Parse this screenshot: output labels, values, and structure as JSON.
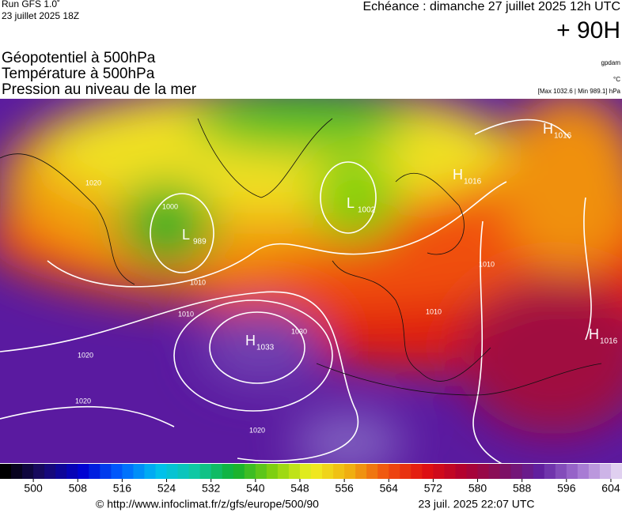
{
  "header": {
    "run": "Run GFS 1.0˚",
    "run_date": "23 juillet 2025 18Z",
    "forecast": "Echéance : dimanche 27 juillet 2025 12h UTC",
    "lead": "+ 90H"
  },
  "fields": {
    "geopotential": "Géopotentiel à 500hPa",
    "temperature": "Température à 500hPa",
    "pressure": "Pression au niveau de la mer"
  },
  "units": {
    "geopotential": "gpdam",
    "temperature": "°C",
    "pressure": "[Max 1032.6 | Min 989.1] hPa"
  },
  "map": {
    "centers": [
      {
        "letter": "H",
        "value": "1033"
      },
      {
        "letter": "L",
        "value": "989"
      },
      {
        "letter": "L",
        "value": "1002"
      },
      {
        "letter": "H",
        "value": "1016"
      },
      {
        "letter": "H",
        "value": "1016"
      },
      {
        "letter": "H",
        "value": "1016"
      }
    ],
    "isobar_labels": [
      "1020",
      "1020",
      "1020",
      "1030",
      "1010",
      "1010",
      "1010",
      "1000",
      "1010",
      "1020"
    ]
  },
  "colorbar": {
    "lim": [
      494,
      606
    ],
    "step": 2,
    "ticks": [
      500,
      508,
      516,
      524,
      532,
      540,
      548,
      556,
      564,
      572,
      580,
      588,
      596,
      604
    ],
    "palette": [
      "#000000",
      "#1a0a6a",
      "#0000d0",
      "#0060ff",
      "#00c0f0",
      "#10c8a0",
      "#10b030",
      "#80d010",
      "#f0f020",
      "#f0b010",
      "#f05010",
      "#e01010",
      "#b00030",
      "#801060",
      "#6020a0",
      "#a070d0",
      "#e0d0f0"
    ]
  },
  "footer": {
    "source": "© http://www.infoclimat.fr/z/gfs/europe/500/90",
    "generated": "23 juil. 2025 22:07 UTC"
  }
}
